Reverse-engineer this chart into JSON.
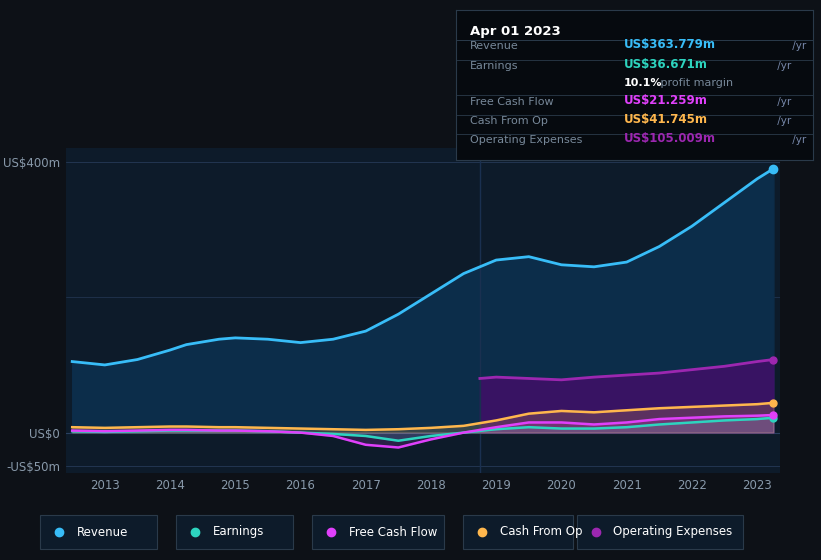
{
  "bg_color": "#0d1117",
  "chart_bg": "#0d1b2a",
  "title_date": "Apr 01 2023",
  "tooltip": {
    "Revenue": {
      "value": "US$363.779m",
      "color": "#38bdf8"
    },
    "Earnings": {
      "value": "US$36.671m",
      "color": "#2dd4bf"
    },
    "Free Cash Flow": {
      "value": "US$21.259m",
      "color": "#e040fb"
    },
    "Cash From Op": {
      "value": "US$41.745m",
      "color": "#ffb74d"
    },
    "Operating Expenses": {
      "value": "US$105.009m",
      "color": "#9c27b0"
    }
  },
  "ylabel_top": "US$400m",
  "ylabel_zero": "US$0",
  "ylabel_bottom": "-US$50m",
  "x_labels": [
    "2013",
    "2014",
    "2015",
    "2016",
    "2017",
    "2018",
    "2019",
    "2020",
    "2021",
    "2022",
    "2023"
  ],
  "years": [
    2012.5,
    2013,
    2013.5,
    2014,
    2014.25,
    2014.75,
    2015,
    2015.5,
    2016,
    2016.5,
    2017,
    2017.5,
    2018,
    2018.5,
    2019,
    2019.5,
    2020,
    2020.5,
    2021,
    2021.5,
    2022,
    2022.5,
    2023,
    2023.25
  ],
  "revenue": [
    105,
    100,
    108,
    122,
    130,
    138,
    140,
    138,
    133,
    138,
    150,
    175,
    205,
    235,
    255,
    260,
    248,
    245,
    252,
    275,
    305,
    340,
    375,
    390
  ],
  "earnings": [
    2,
    1,
    2,
    3,
    3,
    3,
    3,
    2,
    0,
    -2,
    -5,
    -12,
    -5,
    0,
    5,
    8,
    6,
    6,
    8,
    12,
    15,
    18,
    20,
    22
  ],
  "free_cash_flow": [
    3,
    2,
    3,
    4,
    4,
    3,
    3,
    2,
    0,
    -5,
    -18,
    -22,
    -10,
    0,
    8,
    15,
    15,
    12,
    15,
    20,
    22,
    24,
    25,
    26
  ],
  "cash_from_op": [
    8,
    7,
    8,
    9,
    9,
    8,
    8,
    7,
    6,
    5,
    4,
    5,
    7,
    10,
    18,
    28,
    32,
    30,
    33,
    36,
    38,
    40,
    42,
    44
  ],
  "opex_years": [
    2018.75,
    2019,
    2019.5,
    2020,
    2020.5,
    2021,
    2021.5,
    2022,
    2022.5,
    2023,
    2023.25
  ],
  "op_expenses": [
    80,
    82,
    80,
    78,
    82,
    85,
    88,
    93,
    98,
    105,
    108
  ],
  "revenue_color": "#38bdf8",
  "earnings_color": "#2dd4bf",
  "fcf_color": "#e040fb",
  "cashop_color": "#ffb74d",
  "opex_color": "#9c27b0",
  "revenue_fill": "#0c2d4a",
  "opex_fill": "#3d1166",
  "legend_items": [
    {
      "label": "Revenue",
      "color": "#38bdf8"
    },
    {
      "label": "Earnings",
      "color": "#2dd4bf"
    },
    {
      "label": "Free Cash Flow",
      "color": "#e040fb"
    },
    {
      "label": "Cash From Op",
      "color": "#ffb74d"
    },
    {
      "label": "Operating Expenses",
      "color": "#9c27b0"
    }
  ]
}
